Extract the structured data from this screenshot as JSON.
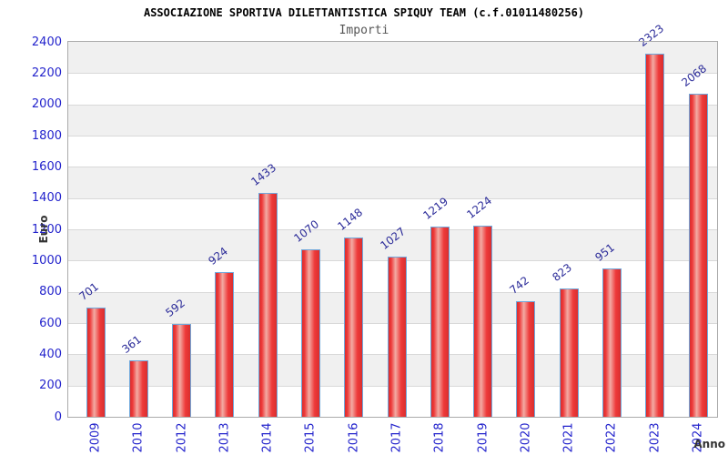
{
  "header": {
    "title": "ASSOCIAZIONE SPORTIVA DILETTANTISTICA SPIQUY TEAM (c.f.01011480256)",
    "subtitle": "Importi"
  },
  "chart_data": {
    "type": "bar",
    "title": "ASSOCIAZIONE SPORTIVA DILETTANTISTICA SPIQUY TEAM (c.f.01011480256)",
    "subtitle": "Importi",
    "categories": [
      "2009",
      "2010",
      "2012",
      "2013",
      "2014",
      "2015",
      "2016",
      "2017",
      "2018",
      "2019",
      "2020",
      "2021",
      "2022",
      "2023",
      "2024"
    ],
    "values": [
      701,
      361,
      592,
      924,
      1433,
      1070,
      1148,
      1027,
      1219,
      1224,
      742,
      823,
      951,
      2323,
      2068
    ],
    "xlabel": "Anno",
    "ylabel": "Euro",
    "ylim": [
      0,
      2400
    ],
    "ytick_step": 200,
    "grid": true,
    "legend": null,
    "band_fill": true,
    "colors": {
      "tick_label": "#2323cc",
      "value_label": "#2b2b99",
      "bar_border": "#6fa8dc",
      "bar_red_dark": "#d92e2e",
      "bar_red": "#ee3a3a",
      "bar_red_light": "#f2aba4",
      "band_gray": "#f0f0f0",
      "band_white": "#ffffff",
      "grid_line": "#d9d9d9",
      "frame_border": "#ababab",
      "title_color": "#000000",
      "subtitle_color": "#555555",
      "axis_title_color": "#333333"
    }
  }
}
